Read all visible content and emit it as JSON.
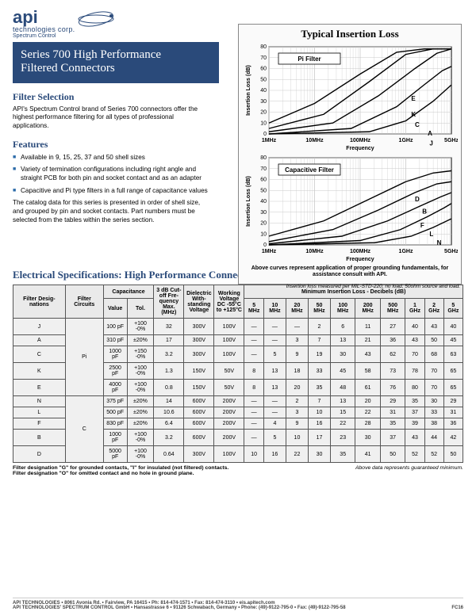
{
  "logo": {
    "brand": "api",
    "line2": "technologies corp.",
    "tagline": "Spectrum Control"
  },
  "title": {
    "line1": "Series 700 High Performance",
    "line2": "Filtered Connectors"
  },
  "filter_selection": {
    "heading": "Filter Selection",
    "body": "API's Spectrum Control brand of Series 700 connectors offer the highest performance filtering for all types of professional applications."
  },
  "features": {
    "heading": "Features",
    "items": [
      "Available in 9, 15, 25, 37 and 50 shell sizes",
      "Variety of termination configurations including right angle and straight PCB for both pin and socket contact and as an adapter",
      "Capacitive and Pi type filters in a full range of capacitance values"
    ],
    "trailer": "The catalog data for this series is presented in order of shell size, and grouped by pin and socket contacts. Part numbers must be selected from the tables within the series section."
  },
  "charts": {
    "title": "Typical Insertion Loss",
    "pi": {
      "label": "Pi Filter",
      "type": "line",
      "y_label": "Insertion Loss (dB)",
      "x_label": "Frequency",
      "ylim": [
        0,
        80
      ],
      "ytick_step": 10,
      "x_ticks": [
        "1MHz",
        "10MHz",
        "100MHz",
        "1GHz",
        "5GHz"
      ],
      "background_color": "#ffffff",
      "grid_color": "#c9c9c9",
      "line_color": "#000000",
      "line_width": 1.4,
      "series": {
        "E": [
          [
            0,
            10
          ],
          [
            0.25,
            28
          ],
          [
            0.5,
            55
          ],
          [
            0.7,
            75
          ],
          [
            0.85,
            78
          ],
          [
            1,
            78
          ]
        ],
        "K": [
          [
            0,
            5
          ],
          [
            0.3,
            18
          ],
          [
            0.55,
            48
          ],
          [
            0.75,
            73
          ],
          [
            0.9,
            78
          ],
          [
            1,
            78
          ]
        ],
        "C": [
          [
            0,
            2
          ],
          [
            0.35,
            10
          ],
          [
            0.6,
            35
          ],
          [
            0.8,
            60
          ],
          [
            0.92,
            74
          ],
          [
            1,
            78
          ]
        ],
        "A": [
          [
            0,
            0
          ],
          [
            0.45,
            5
          ],
          [
            0.7,
            25
          ],
          [
            0.85,
            45
          ],
          [
            0.95,
            58
          ],
          [
            1,
            62
          ]
        ],
        "J": [
          [
            0,
            0
          ],
          [
            0.55,
            2
          ],
          [
            0.75,
            12
          ],
          [
            0.9,
            30
          ],
          [
            1,
            45
          ]
        ]
      },
      "curve_labels": {
        "E": [
          0.78,
          0.62
        ],
        "K": [
          0.78,
          0.8
        ],
        "C": [
          0.8,
          0.92
        ],
        "A": [
          0.87,
          1.02
        ],
        "J": [
          0.88,
          1.13
        ]
      }
    },
    "cap": {
      "label": "Capacitive Filter",
      "type": "line",
      "y_label": "Insertion Loss (dB)",
      "x_label": "Frequency",
      "ylim": [
        0,
        80
      ],
      "ytick_step": 10,
      "x_ticks": [
        "1MHz",
        "10MHz",
        "100MHz",
        "1GHz",
        "5GHz"
      ],
      "background_color": "#ffffff",
      "grid_color": "#c9c9c9",
      "line_color": "#000000",
      "line_width": 1.4,
      "series": {
        "D": [
          [
            0,
            8
          ],
          [
            0.3,
            22
          ],
          [
            0.55,
            42
          ],
          [
            0.75,
            58
          ],
          [
            0.9,
            66
          ],
          [
            1,
            68
          ]
        ],
        "B": [
          [
            0,
            3
          ],
          [
            0.35,
            14
          ],
          [
            0.6,
            32
          ],
          [
            0.8,
            48
          ],
          [
            0.92,
            56
          ],
          [
            1,
            58
          ]
        ],
        "F": [
          [
            0,
            1
          ],
          [
            0.4,
            8
          ],
          [
            0.65,
            22
          ],
          [
            0.82,
            35
          ],
          [
            0.94,
            44
          ],
          [
            1,
            48
          ]
        ],
        "L": [
          [
            0,
            0
          ],
          [
            0.5,
            4
          ],
          [
            0.72,
            14
          ],
          [
            0.87,
            26
          ],
          [
            0.96,
            34
          ],
          [
            1,
            38
          ]
        ],
        "N": [
          [
            0,
            0
          ],
          [
            0.58,
            2
          ],
          [
            0.78,
            8
          ],
          [
            0.9,
            16
          ],
          [
            1,
            24
          ]
        ]
      },
      "curve_labels": {
        "D": [
          0.8,
          0.5
        ],
        "B": [
          0.84,
          0.64
        ],
        "F": [
          0.83,
          0.8
        ],
        "L": [
          0.88,
          0.9
        ],
        "N": [
          0.92,
          1.0
        ]
      }
    },
    "note": "Above curves represent application of proper grounding fundamentals, for assistance consult with API.",
    "caption": "Insertion loss measured per MIL-STD-220, no load, 50ohm source and load."
  },
  "spec": {
    "title": "Electrical Specifications: High Performance Connectors",
    "col_groups": {
      "cap": "Capacitance",
      "cutoff": "3 dB Cut-off Fre-quency Max. (MHz)",
      "dielectric": "Dielectric With-standing Voltage",
      "working": "Working Voltage DC -55°C to +125°C",
      "minloss": "Minimum Insertion Loss - Decibels (dB)"
    },
    "headers": {
      "desig": "Filter Desig-nations",
      "circuits": "Filter Circuits",
      "value": "Value",
      "tol": "Tol.",
      "freqs": [
        "5 MHz",
        "10 MHz",
        "20 MHz",
        "50 MHz",
        "100 MHz",
        "200 MHz",
        "500 MHz",
        "1 GHz",
        "2 GHz",
        "5 GHz"
      ]
    },
    "groups": [
      {
        "circuit": "Pi",
        "rows": [
          {
            "d": "J",
            "val": "100 pF",
            "tol": "+100 -0%",
            "cut": "32",
            "diel": "300V",
            "work": "100V",
            "loss": [
              "—",
              "—",
              "—",
              "2",
              "6",
              "11",
              "27",
              "40",
              "43",
              "40"
            ]
          },
          {
            "d": "A",
            "val": "310 pF",
            "tol": "±20%",
            "cut": "17",
            "diel": "300V",
            "work": "100V",
            "loss": [
              "—",
              "—",
              "3",
              "7",
              "13",
              "21",
              "36",
              "43",
              "50",
              "45"
            ]
          },
          {
            "d": "C",
            "val": "1000 pF",
            "tol": "+150 -0%",
            "cut": "3.2",
            "diel": "300V",
            "work": "100V",
            "loss": [
              "—",
              "5",
              "9",
              "19",
              "30",
              "43",
              "62",
              "70",
              "68",
              "63"
            ]
          },
          {
            "d": "K",
            "val": "2500 pF",
            "tol": "+100 -0%",
            "cut": "1.3",
            "diel": "150V",
            "work": "50V",
            "loss": [
              "8",
              "13",
              "18",
              "33",
              "45",
              "58",
              "73",
              "78",
              "70",
              "65"
            ]
          },
          {
            "d": "E",
            "val": "4000 pF",
            "tol": "+100 -0%",
            "cut": "0.8",
            "diel": "150V",
            "work": "50V",
            "loss": [
              "8",
              "13",
              "20",
              "35",
              "48",
              "61",
              "76",
              "80",
              "70",
              "65"
            ]
          }
        ]
      },
      {
        "circuit": "C",
        "rows": [
          {
            "d": "N",
            "val": "375 pF",
            "tol": "±20%",
            "cut": "14",
            "diel": "600V",
            "work": "200V",
            "loss": [
              "—",
              "—",
              "2",
              "7",
              "13",
              "20",
              "29",
              "35",
              "30",
              "29"
            ]
          },
          {
            "d": "L",
            "val": "500 pF",
            "tol": "±20%",
            "cut": "10.6",
            "diel": "600V",
            "work": "200V",
            "loss": [
              "—",
              "—",
              "3",
              "10",
              "15",
              "22",
              "31",
              "37",
              "33",
              "31"
            ]
          },
          {
            "d": "F",
            "val": "830 pF",
            "tol": "±20%",
            "cut": "6.4",
            "diel": "600V",
            "work": "200V",
            "loss": [
              "—",
              "4",
              "9",
              "16",
              "22",
              "28",
              "35",
              "39",
              "38",
              "36"
            ]
          },
          {
            "d": "B",
            "val": "1000 pF",
            "tol": "+100 -0%",
            "cut": "3.2",
            "diel": "600V",
            "work": "200V",
            "loss": [
              "—",
              "5",
              "10",
              "17",
              "23",
              "30",
              "37",
              "43",
              "44",
              "42"
            ]
          },
          {
            "d": "D",
            "val": "5000 pF",
            "tol": "+100 -0%",
            "cut": "0.64",
            "diel": "300V",
            "work": "100V",
            "loss": [
              "10",
              "16",
              "22",
              "30",
              "35",
              "41",
              "50",
              "52",
              "52",
              "50"
            ]
          }
        ]
      }
    ],
    "footnote_left1": "Filter designation \"G\" for grounded contacts, \"I\" for insulated (not filtered) contacts.",
    "footnote_left2": "Filter designation \"O\" for omitted contact and no hole in ground plane.",
    "footnote_right": "Above data represents guaranteed minimum."
  },
  "footer": {
    "line1": "API TECHNOLOGIES • 8061 Avonia Rd. • Fairview, PA 16415 • Ph: 814-474-1571 • Fax: 814-474-3110 • eis.apitech.com",
    "line2": "API TECHNOLOGIES' SPECTRUM CONTROL GmbH • Hansastrasse 6 • 91126 Schwabach, Germany • Phone: (49)-9122-795-0 • Fax: (49)-9122-795-58",
    "page": "FC16"
  }
}
